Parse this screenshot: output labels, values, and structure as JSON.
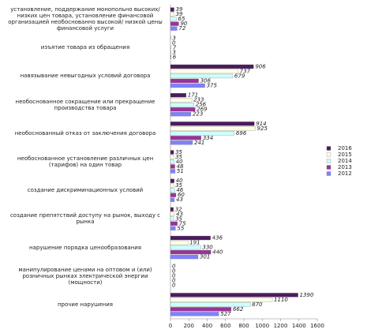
{
  "chart_data": {
    "type": "bar",
    "orientation": "horizontal",
    "categories": [
      "установление, поддержание монопольно высоких/ низких цен товара, установление финансовой организацией необоснованно высокой/ низкой цены финансовой услуги",
      "изъятие товара из обращения",
      "навязывание невыгодных условий договора",
      "необоснованное сокращение или прекращение производства товара",
      "необоснованный отказ от заключения договора",
      "необоснованное установление различных цен (тарифов) на один товар",
      "создание дискриминационных условий",
      "создание препятствий доступу на рынок, выходу с рынка",
      "нарушение порядка ценообразования",
      "манипулирование ценами на оптовом и (или) розничных рынках электрической энергии (мощности)",
      "прочие нарушения"
    ],
    "series": [
      {
        "name": "2016",
        "color": "#4b1b5e",
        "values": [
          39,
          3,
          906,
          171,
          914,
          35,
          40,
          32,
          436,
          0,
          1390
        ]
      },
      {
        "name": "2015",
        "color": "#ffffe6",
        "values": [
          39,
          0,
          737,
          233,
          925,
          35,
          35,
          43,
          191,
          0,
          1110
        ]
      },
      {
        "name": "2014",
        "color": "#ccffff",
        "values": [
          65,
          7,
          679,
          256,
          696,
          40,
          46,
          35,
          330,
          0,
          870
        ]
      },
      {
        "name": "2013",
        "color": "#993399",
        "values": [
          90,
          3,
          306,
          269,
          334,
          48,
          60,
          75,
          440,
          0,
          662
        ]
      },
      {
        "name": "2012",
        "color": "#8080ff",
        "values": [
          72,
          6,
          375,
          223,
          241,
          51,
          43,
          55,
          301,
          0,
          527
        ]
      }
    ],
    "xlim": [
      0,
      1600
    ],
    "xticks": [
      0,
      200,
      400,
      600,
      800,
      1000,
      1200,
      1400,
      1600
    ]
  }
}
